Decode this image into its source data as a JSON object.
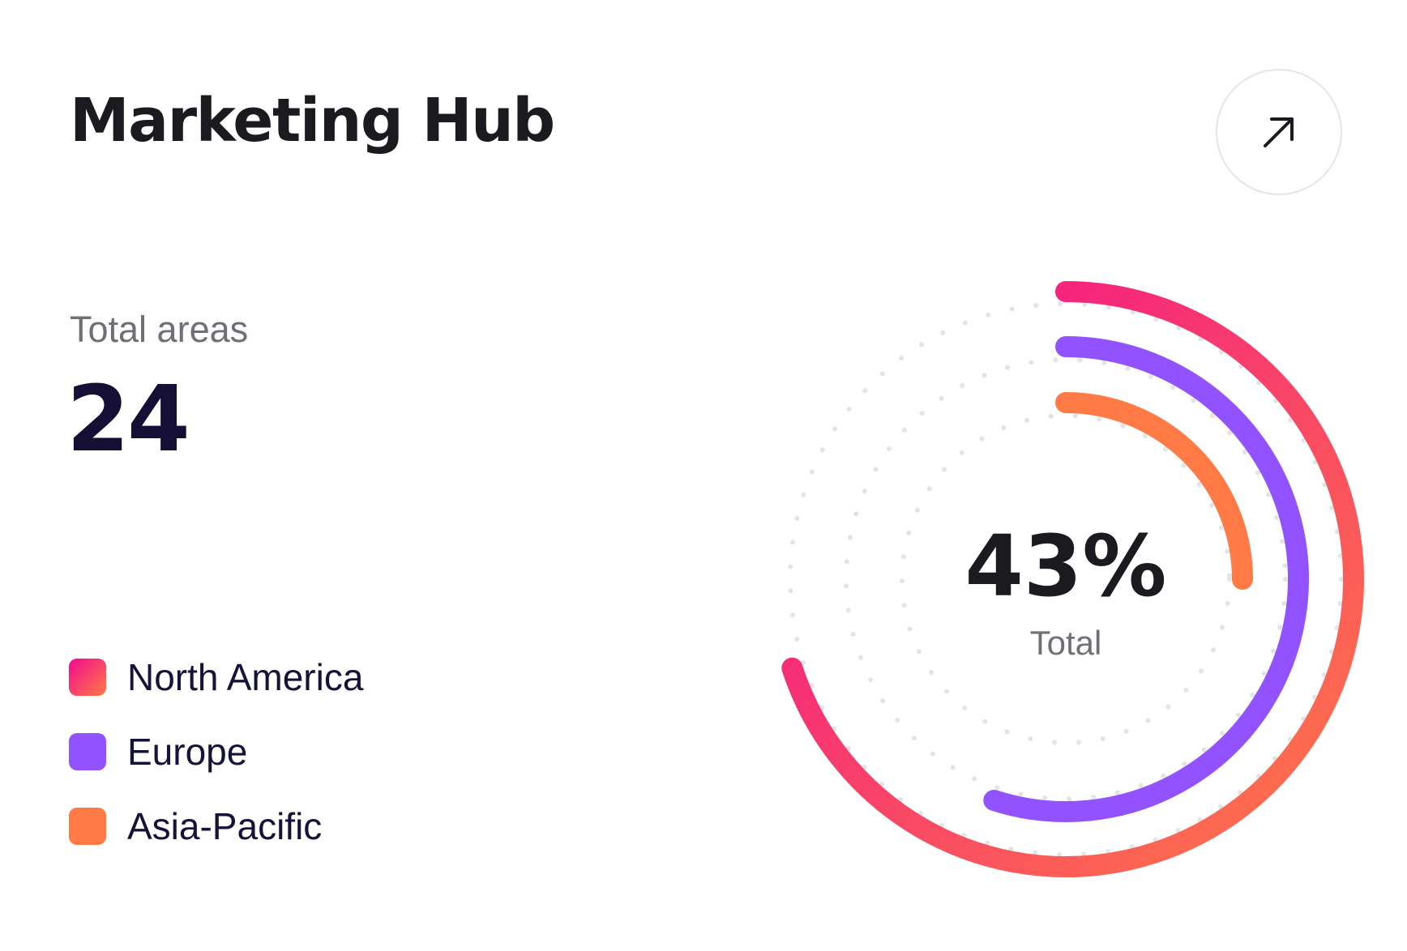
{
  "header": {
    "title": "Marketing Hub",
    "open_icon": "arrow-up-right-icon"
  },
  "stat": {
    "label": "Total areas",
    "value": "24"
  },
  "chart_data": {
    "type": "radial-bar",
    "center_value": "43%",
    "center_label": "Total",
    "max": 100,
    "series": [
      {
        "name": "North America",
        "value": 70,
        "color_start": "#f2098e",
        "color_end": "#ff7a45"
      },
      {
        "name": "Europe",
        "value": 55,
        "color": "#9252ff"
      },
      {
        "name": "Asia-Pacific",
        "value": 25,
        "color": "#ff7a45"
      }
    ],
    "track": "dotted",
    "track_color": "#e4e4e7"
  },
  "legend": [
    {
      "label": "North America",
      "color_start": "#f2098e",
      "color_end": "#ff7a45"
    },
    {
      "label": "Europe",
      "color_start": "#9252ff",
      "color_end": "#9252ff"
    },
    {
      "label": "Asia-Pacific",
      "color_start": "#ff7a45",
      "color_end": "#ff7a45"
    }
  ]
}
